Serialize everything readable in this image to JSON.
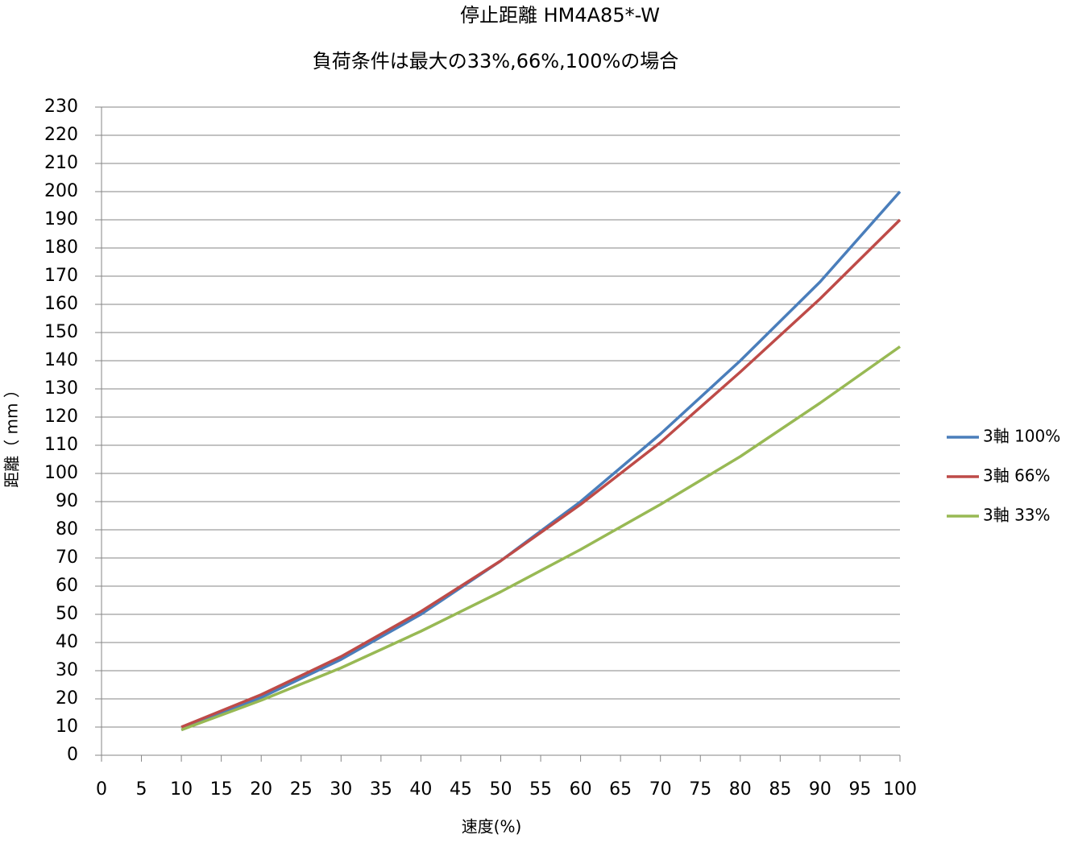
{
  "chart_data": {
    "type": "line",
    "title": "停止距離 HM4A85*-W",
    "subtitle": "負荷条件は最大の33%,66%,100%の場合",
    "x_label": "速度(%)",
    "y_label": "距離（ mm ）",
    "x": [
      10,
      20,
      30,
      40,
      50,
      60,
      70,
      80,
      90,
      100
    ],
    "series": [
      {
        "name": "3軸 100%",
        "color": "#4a7ebb",
        "values": [
          9,
          20.5,
          34,
          50,
          69,
          90,
          114,
          140,
          168,
          200
        ]
      },
      {
        "name": "3軸 66%",
        "color": "#be4b48",
        "values": [
          10,
          21.5,
          35,
          51,
          69,
          89,
          111,
          136,
          162,
          190
        ]
      },
      {
        "name": "3軸 33%",
        "color": "#98b954",
        "values": [
          9,
          19.5,
          31,
          44,
          58,
          73,
          89,
          106,
          125,
          145
        ]
      }
    ],
    "xlim": [
      0,
      100
    ],
    "xticks": [
      0,
      5,
      10,
      15,
      20,
      25,
      30,
      35,
      40,
      45,
      50,
      55,
      60,
      65,
      70,
      75,
      80,
      85,
      90,
      95,
      100
    ],
    "ylim": [
      0,
      230
    ],
    "yticks": [
      0,
      10,
      20,
      30,
      40,
      50,
      60,
      70,
      80,
      90,
      100,
      110,
      120,
      130,
      140,
      150,
      160,
      170,
      180,
      190,
      200,
      210,
      220,
      230
    ],
    "grid": true,
    "legend": "right"
  }
}
